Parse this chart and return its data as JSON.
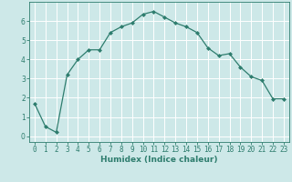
{
  "x": [
    0,
    1,
    2,
    3,
    4,
    5,
    6,
    7,
    8,
    9,
    10,
    11,
    12,
    13,
    14,
    15,
    16,
    17,
    18,
    19,
    20,
    21,
    22,
    23
  ],
  "y": [
    1.7,
    0.5,
    0.2,
    3.2,
    4.0,
    4.5,
    4.5,
    5.4,
    5.7,
    5.9,
    6.35,
    6.5,
    6.2,
    5.9,
    5.7,
    5.4,
    4.6,
    4.2,
    4.3,
    3.6,
    3.1,
    2.9,
    1.95,
    1.95
  ],
  "line_color": "#2e7d6e",
  "marker": "D",
  "marker_size": 2,
  "bg_color": "#cde8e8",
  "grid_color": "#ffffff",
  "xlabel": "Humidex (Indice chaleur)",
  "ylim": [
    -0.3,
    7.0
  ],
  "xlim": [
    -0.5,
    23.5
  ],
  "yticks": [
    0,
    1,
    2,
    3,
    4,
    5,
    6
  ],
  "xticks": [
    0,
    1,
    2,
    3,
    4,
    5,
    6,
    7,
    8,
    9,
    10,
    11,
    12,
    13,
    14,
    15,
    16,
    17,
    18,
    19,
    20,
    21,
    22,
    23
  ],
  "xtick_labels": [
    "0",
    "1",
    "2",
    "3",
    "4",
    "5",
    "6",
    "7",
    "8",
    "9",
    "10",
    "11",
    "12",
    "13",
    "14",
    "15",
    "16",
    "17",
    "18",
    "19",
    "20",
    "21",
    "22",
    "23"
  ],
  "tick_color": "#2e7d6e",
  "axis_color": "#2e7d6e",
  "label_fontsize": 6.5,
  "tick_fontsize": 5.5
}
